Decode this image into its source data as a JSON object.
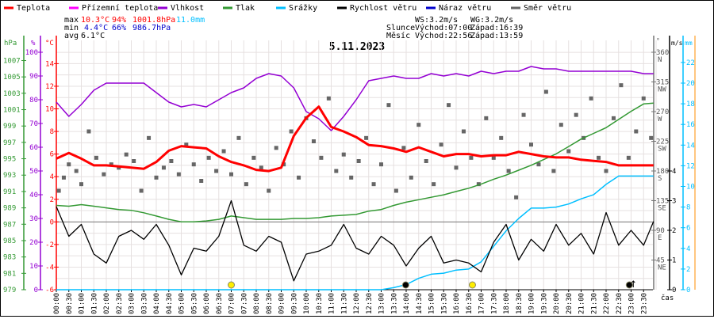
{
  "chart_data": {
    "type": "line",
    "title": "5.11.2023",
    "legend": [
      {
        "label": "Teplota",
        "color": "#ff0000"
      },
      {
        "label": "Přízemní teplota",
        "color": "#ff00ff"
      },
      {
        "label": "Vlhkost",
        "color": "#9400d3"
      },
      {
        "label": "Tlak",
        "color": "#339933"
      },
      {
        "label": "Srážky",
        "color": "#00bfff"
      },
      {
        "label": "Rychlost větru",
        "color": "#000000"
      },
      {
        "label": "Náraz větru",
        "color": "#0000cc"
      },
      {
        "label": "Směr větru",
        "color": "#666666"
      }
    ],
    "stats": {
      "max_label": "max",
      "max_temp": "10.3°C",
      "max_hum": "94%",
      "max_press": "1001.8hPa",
      "max_rain": "11.0mm",
      "min_label": "min",
      "min_temp": "4.4°C",
      "min_hum": "66%",
      "min_press": "986.7hPa",
      "avg_label": "avg",
      "avg_temp": "6.1°C",
      "ws": "WS:3.2m/s",
      "wg": "WG:3.2m/s",
      "sun_label": "Slunce",
      "sunrise": "Východ:07:00",
      "sunset": "Západ:16:39",
      "moon_label": "Měsíc",
      "moonrise": "Východ:22:56",
      "moonset": "Západ:13:59"
    },
    "axes": {
      "hpa": {
        "label": "hPa",
        "range": [
          979,
          1008
        ],
        "ticks": [
          979,
          981,
          983,
          985,
          987,
          989,
          991,
          993,
          995,
          997,
          999,
          1001,
          1003,
          1005,
          1007
        ]
      },
      "pct": {
        "label": "%",
        "range": [
          0,
          100
        ],
        "ticks": [
          0,
          10,
          20,
          30,
          40,
          50,
          60,
          70,
          80,
          90,
          100
        ]
      },
      "temp": {
        "label": "°C",
        "range": [
          -6,
          15
        ],
        "ticks": [
          -6,
          -4,
          -2,
          0,
          2,
          4,
          6,
          8,
          10,
          12,
          14
        ]
      },
      "dir": {
        "label": "°",
        "range": [
          0,
          360
        ],
        "ticks": [
          {
            "v": 45,
            "n": "NE"
          },
          {
            "v": 90,
            "n": "E"
          },
          {
            "v": 135,
            "n": "SE"
          },
          {
            "v": 180,
            "n": "S"
          },
          {
            "v": 225,
            "n": "SW"
          },
          {
            "v": 270,
            "n": "W"
          },
          {
            "v": 315,
            "n": "NW"
          },
          {
            "v": 360,
            "n": "N"
          }
        ]
      },
      "ms": {
        "label": "m/s",
        "range": [
          0,
          8
        ],
        "ticks": [
          0,
          1,
          2,
          3,
          4
        ]
      },
      "mm": {
        "label": "mm",
        "range": [
          0,
          23
        ],
        "ticks": [
          0,
          2,
          4,
          6,
          8,
          10,
          12,
          14,
          16,
          18,
          20,
          22
        ]
      },
      "x_label": "čas",
      "x_ticks": [
        "00:00",
        "00:30",
        "01:00",
        "01:30",
        "02:00",
        "02:30",
        "03:00",
        "03:30",
        "04:00",
        "04:30",
        "05:00",
        "05:30",
        "06:00",
        "06:30",
        "07:00",
        "07:30",
        "08:00",
        "08:30",
        "09:00",
        "09:30",
        "10:00",
        "10:30",
        "11:00",
        "11:30",
        "12:00",
        "12:30",
        "13:00",
        "13:30",
        "14:00",
        "14:30",
        "15:00",
        "15:30",
        "16:00",
        "16:30",
        "17:00",
        "17:30",
        "18:00",
        "18:30",
        "19:00",
        "19:30",
        "20:00",
        "20:30",
        "21:00",
        "21:30",
        "22:00",
        "22:30",
        "23:00",
        "23:30"
      ]
    },
    "x_hours": [
      0,
      0.5,
      1,
      1.5,
      2,
      2.5,
      3,
      3.5,
      4,
      4.5,
      5,
      5.5,
      6,
      6.5,
      7,
      7.5,
      8,
      8.5,
      9,
      9.5,
      10,
      10.5,
      11,
      11.5,
      12,
      12.5,
      13,
      13.5,
      14,
      14.5,
      15,
      15.5,
      16,
      16.5,
      17,
      17.5,
      18,
      18.5,
      19,
      19.5,
      20,
      20.5,
      21,
      21.5,
      22,
      22.5,
      23,
      23.5,
      23.9
    ],
    "series": [
      {
        "name": "Teplota",
        "axis": "temp",
        "color": "#ff0000",
        "width": 3,
        "values": [
          5.6,
          6.1,
          5.6,
          5.0,
          5.0,
          4.9,
          4.8,
          4.7,
          5.3,
          6.3,
          6.7,
          6.6,
          6.5,
          5.8,
          5.3,
          5.0,
          4.6,
          4.5,
          4.8,
          7.6,
          9.2,
          10.2,
          8.4,
          8.0,
          7.5,
          6.8,
          6.7,
          6.5,
          6.2,
          6.6,
          6.2,
          5.8,
          6.0,
          6.0,
          5.8,
          5.9,
          5.9,
          6.2,
          6.0,
          5.8,
          5.7,
          5.7,
          5.5,
          5.4,
          5.3,
          5.0,
          5.0,
          5.0,
          5.0
        ]
      },
      {
        "name": "Vlhkost",
        "axis": "pct",
        "color": "#9400d3",
        "width": 1.5,
        "values": [
          79,
          73,
          78,
          84,
          87,
          87,
          87,
          87,
          83,
          79,
          77,
          78,
          77,
          80,
          83,
          85,
          89,
          91,
          90,
          85,
          75,
          72,
          67,
          73,
          80,
          88,
          89,
          90,
          89,
          89,
          91,
          90,
          91,
          90,
          92,
          91,
          92,
          92,
          94,
          93,
          93,
          92,
          92,
          92,
          92,
          92,
          92,
          91,
          91
        ]
      },
      {
        "name": "Tlak",
        "axis": "hpa",
        "color": "#339933",
        "width": 1.5,
        "values": [
          989.3,
          989.2,
          989.4,
          989.2,
          989.0,
          988.8,
          988.7,
          988.4,
          988.0,
          987.6,
          987.3,
          987.3,
          987.4,
          987.6,
          988.0,
          987.8,
          987.6,
          987.6,
          987.6,
          987.7,
          987.7,
          987.8,
          988.0,
          988.1,
          988.2,
          988.6,
          988.8,
          989.3,
          989.7,
          990.0,
          990.3,
          990.6,
          991.0,
          991.4,
          991.9,
          992.5,
          993.0,
          993.6,
          994.2,
          994.9,
          995.6,
          996.5,
          997.4,
          998.1,
          998.8,
          999.8,
          1000.8,
          1001.7,
          1001.8
        ]
      },
      {
        "name": "Srážky",
        "axis": "mm",
        "color": "#00bfff",
        "width": 1.5,
        "values": [
          0,
          0,
          0,
          0,
          0,
          0,
          0,
          0,
          0,
          0,
          0,
          0,
          0,
          0,
          0,
          0,
          0,
          0,
          0,
          0,
          0,
          0,
          0,
          0,
          0,
          0,
          0,
          0.2,
          0.5,
          1.1,
          1.5,
          1.6,
          1.9,
          2.0,
          2.7,
          4.2,
          5.7,
          6.9,
          7.9,
          7.9,
          8.0,
          8.3,
          8.8,
          9.2,
          10.2,
          11.0,
          11.0,
          11.0,
          11.0
        ]
      },
      {
        "name": "Rychlost větru",
        "axis": "ms",
        "color": "#000000",
        "width": 1.3,
        "values": [
          2.8,
          1.8,
          2.2,
          1.2,
          0.9,
          1.8,
          2.0,
          1.7,
          2.2,
          1.5,
          0.5,
          1.4,
          1.3,
          1.8,
          3.0,
          1.5,
          1.3,
          1.8,
          1.6,
          0.3,
          1.2,
          1.3,
          1.5,
          2.2,
          1.4,
          1.2,
          1.8,
          1.5,
          0.8,
          1.4,
          1.8,
          0.9,
          1.0,
          0.9,
          0.6,
          1.6,
          2.2,
          1.0,
          1.7,
          1.3,
          2.2,
          1.5,
          1.9,
          1.2,
          2.6,
          1.5,
          2.0,
          1.5,
          2.3
        ]
      }
    ],
    "wind_direction": {
      "name": "Směr větru",
      "axis": "dir",
      "color": "#666666",
      "x": [
        0.1,
        0.3,
        0.5,
        0.8,
        1.0,
        1.3,
        1.6,
        1.9,
        2.2,
        2.5,
        2.8,
        3.1,
        3.4,
        3.7,
        4.0,
        4.3,
        4.6,
        4.9,
        5.2,
        5.5,
        5.8,
        6.1,
        6.4,
        6.7,
        7.0,
        7.3,
        7.6,
        7.9,
        8.2,
        8.5,
        8.8,
        9.1,
        9.4,
        9.7,
        10.0,
        10.3,
        10.6,
        10.9,
        11.2,
        11.5,
        11.8,
        12.1,
        12.4,
        12.7,
        13.0,
        13.3,
        13.6,
        13.9,
        14.2,
        14.5,
        14.8,
        15.1,
        15.4,
        15.7,
        16.0,
        16.3,
        16.6,
        16.9,
        17.2,
        17.5,
        17.8,
        18.1,
        18.4,
        18.7,
        19.0,
        19.3,
        19.6,
        19.9,
        20.2,
        20.5,
        20.8,
        21.1,
        21.4,
        21.7,
        22.0,
        22.3,
        22.6,
        22.9,
        23.2,
        23.5,
        23.8
      ],
      "values": [
        150,
        170,
        190,
        180,
        160,
        240,
        200,
        175,
        190,
        185,
        205,
        195,
        150,
        230,
        170,
        185,
        195,
        175,
        220,
        190,
        165,
        200,
        180,
        210,
        175,
        230,
        160,
        200,
        185,
        150,
        215,
        190,
        240,
        170,
        260,
        225,
        200,
        290,
        180,
        205,
        170,
        195,
        230,
        160,
        190,
        280,
        150,
        215,
        170,
        250,
        195,
        160,
        220,
        280,
        185,
        240,
        200,
        160,
        260,
        200,
        230,
        180,
        140,
        265,
        220,
        190,
        300,
        180,
        250,
        210,
        265,
        230,
        290,
        200,
        180,
        260,
        310,
        200,
        240,
        290,
        230
      ]
    },
    "markers": [
      {
        "type": "sunrise",
        "hour": 7.0,
        "color": "#ffee00"
      },
      {
        "type": "sunset",
        "hour": 16.65,
        "color": "#ffee00"
      },
      {
        "type": "moonset",
        "hour": 13.98,
        "color": "#000000"
      },
      {
        "type": "moonrise",
        "hour": 22.93,
        "color": "#000000"
      }
    ]
  }
}
